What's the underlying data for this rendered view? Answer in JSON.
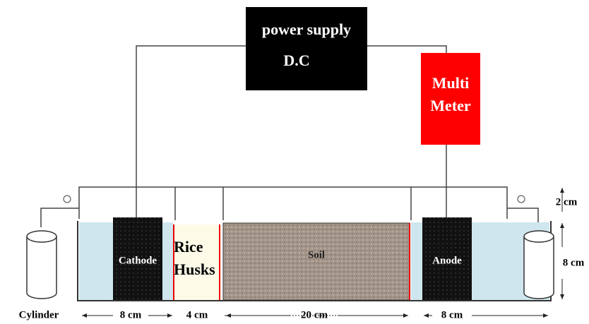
{
  "power_supply": {
    "line1": "power supply",
    "line2": "D.C"
  },
  "multimeter": {
    "line1": "Multi",
    "line2": "Meter"
  },
  "cell": {
    "cathode": "Cathode",
    "rice_husks": [
      "Rice",
      "Husks"
    ],
    "soil": "Soil",
    "anode": "Anode",
    "cylinder": "Cylinder"
  },
  "dimensions": {
    "cathode_width": "8 cm",
    "husks_width": "4 cm",
    "soil_width": "20 cm",
    "anode_width": "8 cm",
    "top_gap": "2 cm",
    "height": "8 cm"
  }
}
